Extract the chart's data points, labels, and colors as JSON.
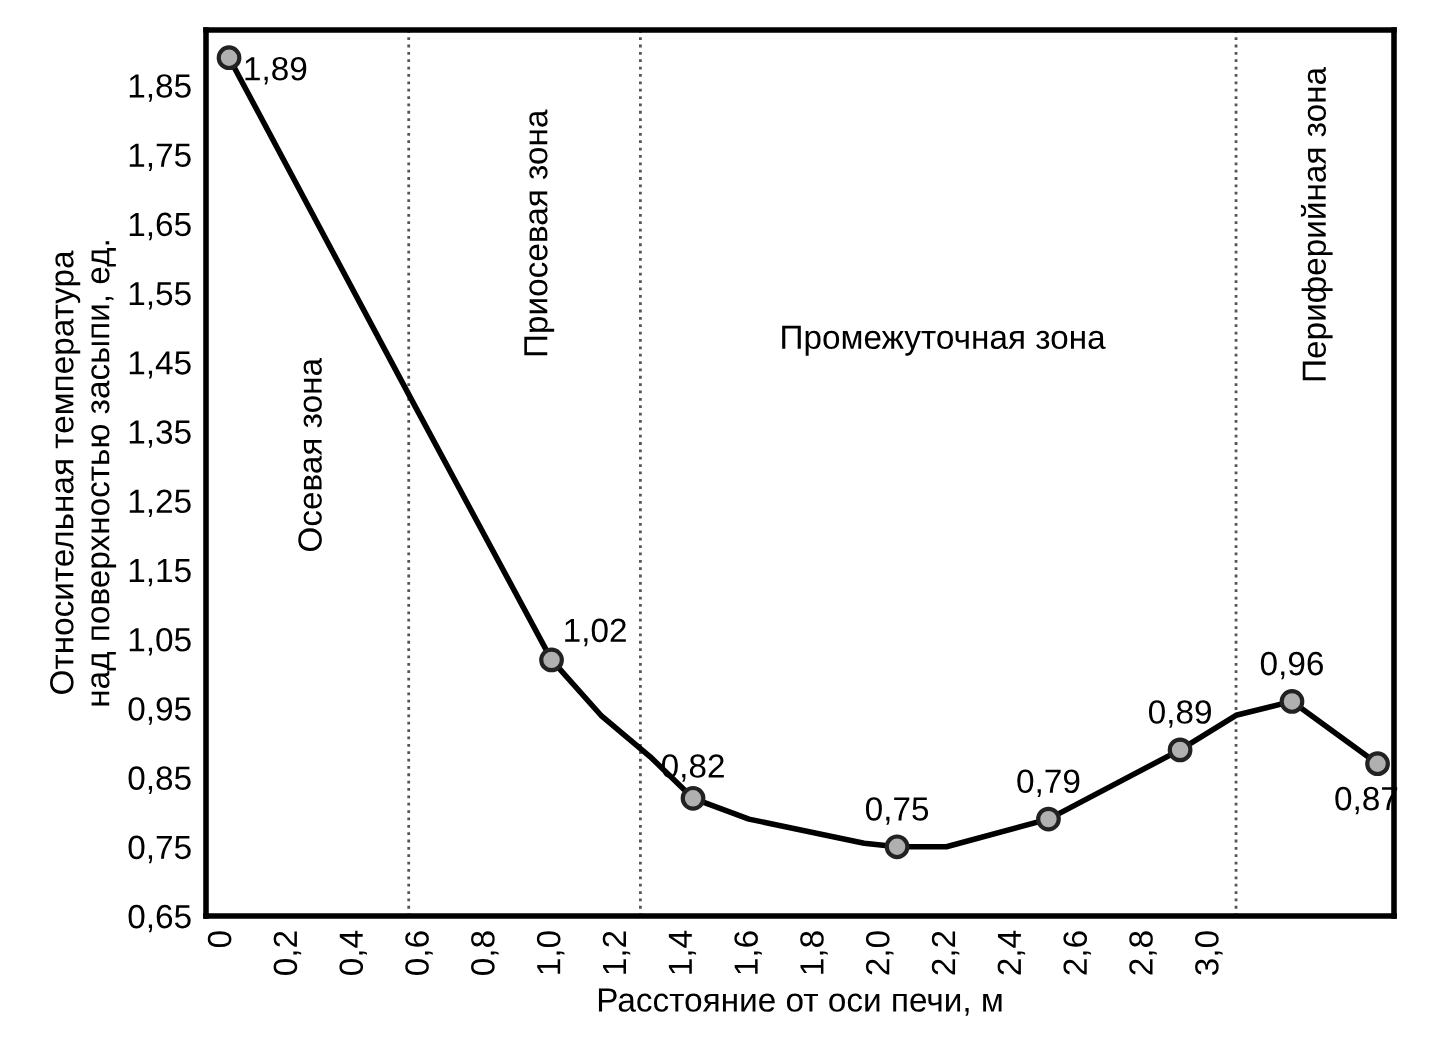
{
  "chart_data": {
    "type": "line",
    "xlabel": "Расстояние от оси печи, м",
    "ylabel": "Относительная температура\nнад поверхностью засыпи, ед.",
    "xlim": [
      -0.05,
      3.56
    ],
    "ylim": [
      0.65,
      1.93
    ],
    "xticks": [
      0,
      {
        "value": 0.2,
        "label": "0,2"
      },
      {
        "value": 0.4,
        "label": "0,4"
      },
      {
        "value": 0.6,
        "label": "0,6"
      },
      {
        "value": 0.8,
        "label": "0,8"
      },
      {
        "value": 1.0,
        "label": "1,0"
      },
      {
        "value": 1.2,
        "label": "1,2"
      },
      {
        "value": 1.4,
        "label": "1,4"
      },
      {
        "value": 1.6,
        "label": "1,6"
      },
      {
        "value": 1.8,
        "label": "1,8"
      },
      {
        "value": 2.0,
        "label": "2,0"
      },
      {
        "value": 2.2,
        "label": "2,2"
      },
      {
        "value": 2.4,
        "label": "2,4"
      },
      {
        "value": 2.6,
        "label": "2,6"
      },
      {
        "value": 2.8,
        "label": "2,8"
      },
      {
        "value": 3.0,
        "label": "3,0"
      }
    ],
    "yticks": [
      {
        "value": 0.65,
        "label": "0,65"
      },
      {
        "value": 0.75,
        "label": "0,75"
      },
      {
        "value": 0.85,
        "label": "0,85"
      },
      {
        "value": 0.95,
        "label": "0,95"
      },
      {
        "value": 1.05,
        "label": "1,05"
      },
      {
        "value": 1.15,
        "label": "1,15"
      },
      {
        "value": 1.25,
        "label": "1,25"
      },
      {
        "value": 1.35,
        "label": "1,35"
      },
      {
        "value": 1.45,
        "label": "1,45"
      },
      {
        "value": 1.55,
        "label": "1,55"
      },
      {
        "value": 1.65,
        "label": "1,65"
      },
      {
        "value": 1.75,
        "label": "1,75"
      },
      {
        "value": 1.85,
        "label": "1,85"
      }
    ],
    "series": [
      {
        "color": "#000000",
        "marker": "none",
        "x": [
          0.02,
          0.57,
          1.0,
          1.15,
          1.3,
          1.43,
          1.6,
          1.95,
          2.05,
          2.2,
          2.51,
          2.91,
          3.08,
          3.25,
          3.51
        ],
        "values": [
          1.89,
          1.4,
          1.02,
          0.94,
          0.88,
          0.82,
          0.79,
          0.755,
          0.75,
          0.75,
          0.79,
          0.89,
          0.94,
          0.96,
          0.87
        ]
      },
      {
        "type": "scatter",
        "color": "#b0b0b0",
        "marker": "circle",
        "x": [
          0.02,
          1.0,
          1.43,
          2.05,
          2.51,
          2.91,
          3.25,
          3.51
        ],
        "values": [
          1.89,
          1.02,
          0.82,
          0.75,
          0.79,
          0.89,
          0.96,
          0.87
        ],
        "value_labels": [
          "1,89",
          "1,02",
          "0,82",
          "0,75",
          "0,79",
          "0,89",
          "0,96",
          "0,87"
        ]
      }
    ],
    "ref_lines": [
      {
        "axis": "x",
        "value": 0.566,
        "line_style": "dotted",
        "color": "#555555"
      },
      {
        "axis": "x",
        "value": 1.27,
        "line_style": "dotted",
        "color": "#555555"
      },
      {
        "axis": "x",
        "value": 3.08,
        "line_style": "dotted",
        "color": "#555555"
      }
    ],
    "annotations": [
      "Осевая зона",
      "Приосевая зона",
      "Промежуточная зона",
      "Периферийная зона"
    ],
    "grid": false,
    "legend": false
  }
}
